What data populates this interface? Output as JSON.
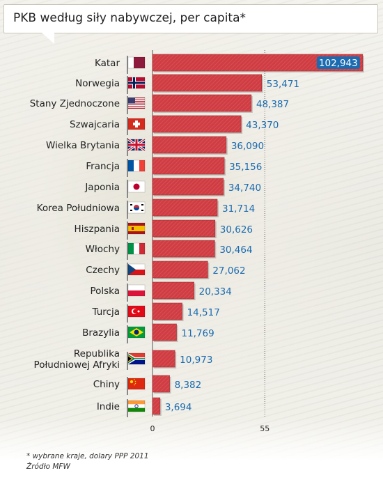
{
  "title": "PKB według siły nabywczej, per capita*",
  "footnote": "* wybrane kraje, dolary PPP 2011",
  "source": "Źródło  MFW",
  "colors": {
    "bar": "#cf3d43",
    "bar_dark": "#a52a30",
    "value_text": "#1a6bb0",
    "top_value_bg": "#1a6bb0"
  },
  "chart_data": {
    "type": "bar",
    "orientation": "horizontal",
    "title": "PKB według siły nabywczej, per capita*",
    "categories": [
      "Katar",
      "Norwegia",
      "Stany Zjednoczone",
      "Szwajcaria",
      "Wielka Brytania",
      "Francja",
      "Japonia",
      "Korea Południowa",
      "Hiszpania",
      "Włochy",
      "Czechy",
      "Polska",
      "Turcja",
      "Brazylia",
      "Republika Południowej Afryki",
      "Chiny",
      "Indie"
    ],
    "category_lines": [
      [
        "Katar"
      ],
      [
        "Norwegia"
      ],
      [
        "Stany Zjednoczone"
      ],
      [
        "Szwajcaria"
      ],
      [
        "Wielka Brytania"
      ],
      [
        "Francja"
      ],
      [
        "Japonia"
      ],
      [
        "Korea Południowa"
      ],
      [
        "Hiszpania"
      ],
      [
        "Włochy"
      ],
      [
        "Czechy"
      ],
      [
        "Polska"
      ],
      [
        "Turcja"
      ],
      [
        "Brazylia"
      ],
      [
        "Republika",
        "Południowej Afryki"
      ],
      [
        "Chiny"
      ],
      [
        "Indie"
      ]
    ],
    "values": [
      102943,
      53471,
      48387,
      43370,
      36090,
      35156,
      34740,
      31714,
      30626,
      30464,
      27062,
      20334,
      14517,
      11769,
      10973,
      8382,
      3694
    ],
    "value_labels": [
      "102,943",
      "53,471",
      "48,387",
      "43,370",
      "36,090",
      "35,156",
      "34,740",
      "31,714",
      "30,626",
      "30,464",
      "27,062",
      "20,334",
      "14,517",
      "11,769",
      "10,973",
      "8,382",
      "3,694"
    ],
    "flags": [
      "flag-qatar-icon",
      "flag-norway-icon",
      "flag-usa-icon",
      "flag-switzerland-icon",
      "flag-uk-icon",
      "flag-france-icon",
      "flag-japan-icon",
      "flag-south-korea-icon",
      "flag-spain-icon",
      "flag-italy-icon",
      "flag-czech-icon",
      "flag-poland-icon",
      "flag-turkey-icon",
      "flag-brazil-icon",
      "flag-south-africa-icon",
      "flag-china-icon",
      "flag-india-icon"
    ],
    "x_ticks": [
      "0",
      "55"
    ],
    "x_tick_values": [
      0,
      55000
    ],
    "xlim": [
      0,
      103000
    ],
    "xlabel": "",
    "ylabel": ""
  }
}
